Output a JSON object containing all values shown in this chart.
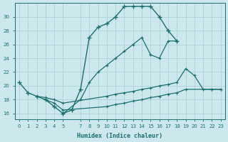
{
  "xlabel": "Humidex (Indice chaleur)",
  "bg_color": "#cce8ec",
  "grid_color": "#a8ced4",
  "line_color": "#1a7070",
  "xlim": [
    -0.5,
    23.5
  ],
  "ylim": [
    15.2,
    32.0
  ],
  "xticks": [
    0,
    1,
    2,
    3,
    4,
    5,
    7,
    8,
    9,
    10,
    11,
    12,
    13,
    14,
    15,
    16,
    17,
    18,
    19,
    20,
    21,
    22,
    23
  ],
  "yticks": [
    16,
    18,
    20,
    22,
    24,
    26,
    28,
    30
  ],
  "curve1_x": [
    0,
    1,
    2,
    3,
    4,
    5,
    6,
    7,
    8,
    9,
    10,
    11,
    12,
    13,
    14,
    15,
    16,
    17,
    18
  ],
  "curve1_y": [
    20.5,
    19.0,
    18.5,
    18.0,
    17.0,
    16.0,
    16.5,
    19.5,
    27.0,
    28.5,
    29.0,
    30.0,
    31.5,
    31.5,
    31.5,
    31.5,
    30.0,
    28.0,
    26.5
  ],
  "curve2_x": [
    5,
    7,
    8,
    9,
    10,
    11,
    12,
    13,
    14,
    15,
    16,
    17,
    18
  ],
  "curve2_y": [
    16.0,
    18.0,
    20.5,
    22.0,
    23.0,
    24.0,
    25.0,
    26.0,
    27.0,
    24.5,
    24.0,
    26.5,
    26.5
  ],
  "curve3_x": [
    2,
    3,
    4,
    5,
    10,
    11,
    12,
    13,
    14,
    15,
    16,
    17,
    18,
    19,
    20,
    21,
    22,
    23
  ],
  "curve3_y": [
    18.5,
    18.3,
    18.0,
    17.5,
    18.5,
    18.8,
    19.0,
    19.2,
    19.5,
    19.7,
    20.0,
    20.2,
    20.5,
    22.5,
    21.5,
    19.5,
    19.5,
    19.5
  ],
  "curve4_x": [
    3,
    4,
    5,
    10,
    11,
    12,
    13,
    14,
    15,
    16,
    17,
    18,
    19,
    22,
    23
  ],
  "curve4_y": [
    18.0,
    17.5,
    16.5,
    17.0,
    17.3,
    17.5,
    17.8,
    18.0,
    18.3,
    18.5,
    18.8,
    19.0,
    19.5,
    19.5,
    19.5
  ]
}
